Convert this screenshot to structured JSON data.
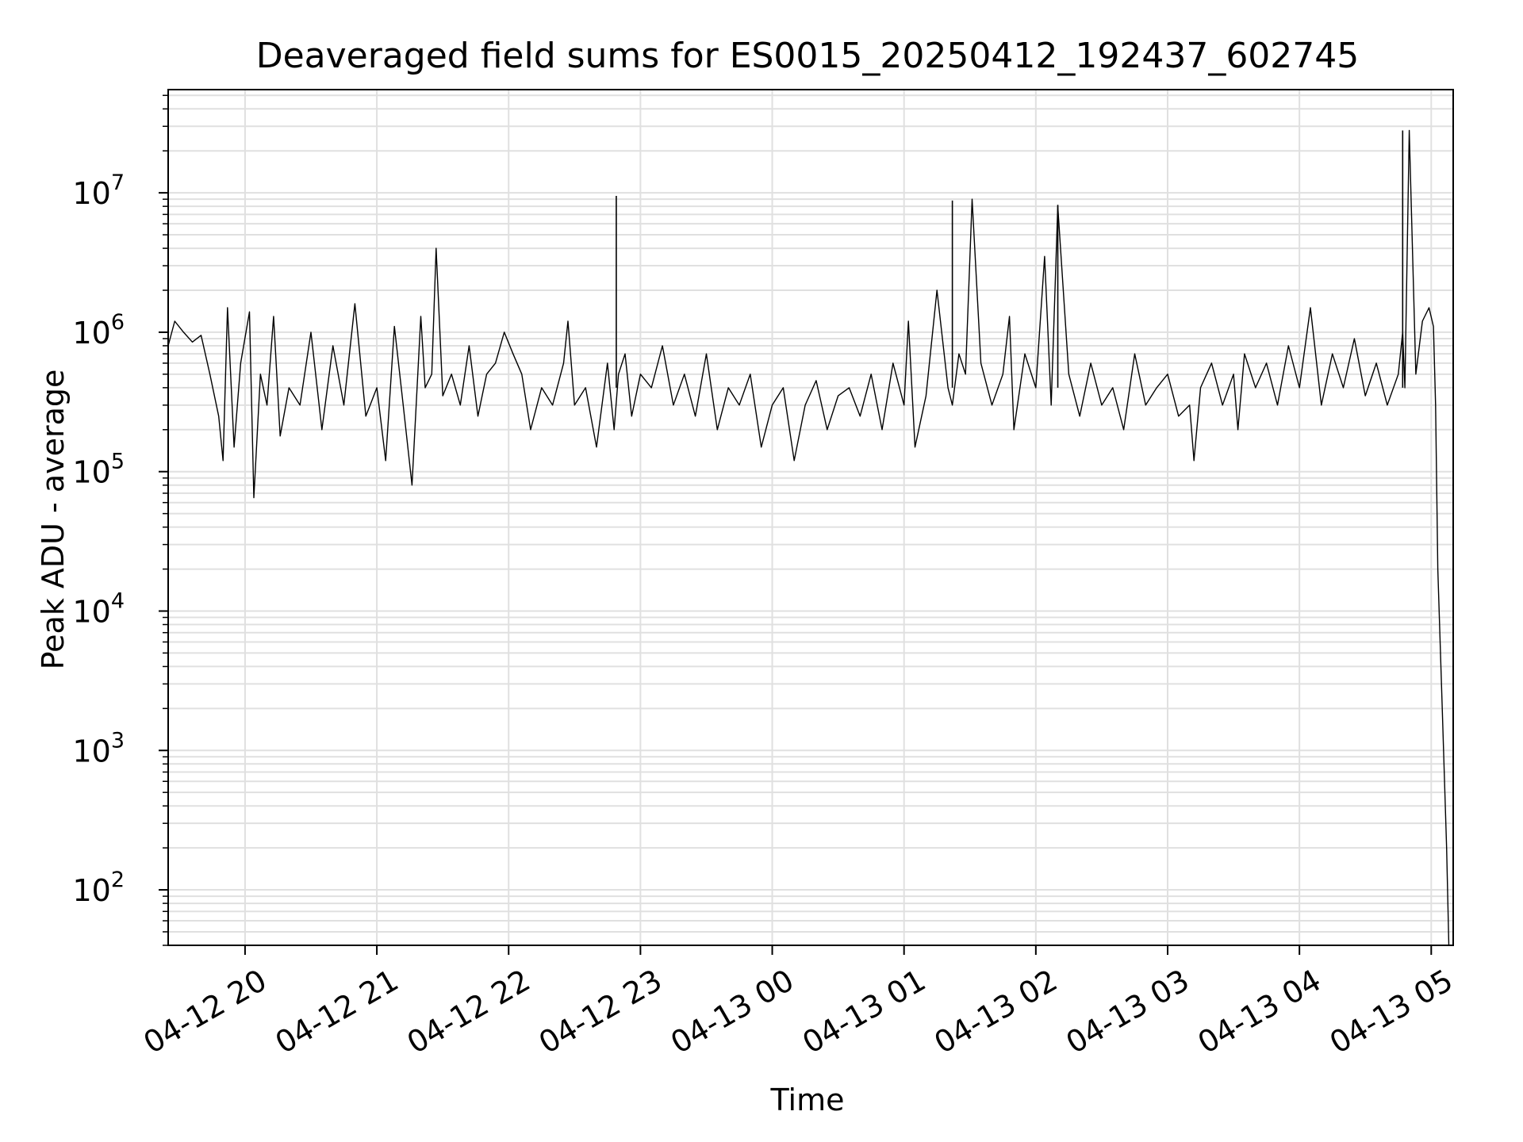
{
  "chart_data": {
    "type": "line",
    "title": "Deaveraged field sums for ES0015_20250412_192437_602745",
    "xlabel": "Time",
    "ylabel": "Peak ADU - average",
    "yscale": "log",
    "xlim": [
      "2025-04-12 19:25",
      "2025-04-13 05:10"
    ],
    "ylim": [
      40,
      55000000
    ],
    "grid": true,
    "line_color": "#000000",
    "grid_color": "#e0e0e0",
    "x_ticks": [
      {
        "t": "2025-04-12 20:00",
        "label": "04-12 20"
      },
      {
        "t": "2025-04-12 21:00",
        "label": "04-12 21"
      },
      {
        "t": "2025-04-12 22:00",
        "label": "04-12 22"
      },
      {
        "t": "2025-04-12 23:00",
        "label": "04-12 23"
      },
      {
        "t": "2025-04-13 00:00",
        "label": "04-13 00"
      },
      {
        "t": "2025-04-13 01:00",
        "label": "04-13 01"
      },
      {
        "t": "2025-04-13 02:00",
        "label": "04-13 02"
      },
      {
        "t": "2025-04-13 03:00",
        "label": "04-13 03"
      },
      {
        "t": "2025-04-13 04:00",
        "label": "04-13 04"
      },
      {
        "t": "2025-04-13 05:00",
        "label": "04-13 05"
      }
    ],
    "y_ticks": [
      {
        "value": 100,
        "base": "10",
        "exp": "2"
      },
      {
        "value": 1000,
        "base": "10",
        "exp": "3"
      },
      {
        "value": 10000,
        "base": "10",
        "exp": "4"
      },
      {
        "value": 100000,
        "base": "10",
        "exp": "5"
      },
      {
        "value": 1000000,
        "base": "10",
        "exp": "6"
      },
      {
        "value": 10000000,
        "base": "10",
        "exp": "7"
      }
    ],
    "series": [
      {
        "x": [
          "2025-04-12 19:25",
          "2025-04-12 19:28",
          "2025-04-12 19:32",
          "2025-04-12 19:36",
          "2025-04-12 19:40",
          "2025-04-12 19:44",
          "2025-04-12 19:48",
          "2025-04-12 19:50",
          "2025-04-12 19:52",
          "2025-04-12 19:55",
          "2025-04-12 19:58",
          "2025-04-12 20:02",
          "2025-04-12 20:04",
          "2025-04-12 20:07",
          "2025-04-12 20:10",
          "2025-04-12 20:13",
          "2025-04-12 20:16",
          "2025-04-12 20:20",
          "2025-04-12 20:25",
          "2025-04-12 20:30",
          "2025-04-12 20:35",
          "2025-04-12 20:40",
          "2025-04-12 20:45",
          "2025-04-12 20:50",
          "2025-04-12 20:55",
          "2025-04-12 21:00",
          "2025-04-12 21:04",
          "2025-04-12 21:08",
          "2025-04-12 21:12",
          "2025-04-12 21:16",
          "2025-04-12 21:20",
          "2025-04-12 21:22",
          "2025-04-12 21:25",
          "2025-04-12 21:27",
          "2025-04-12 21:30",
          "2025-04-12 21:34",
          "2025-04-12 21:38",
          "2025-04-12 21:42",
          "2025-04-12 21:46",
          "2025-04-12 21:50",
          "2025-04-12 21:54",
          "2025-04-12 21:58",
          "2025-04-12 22:02",
          "2025-04-12 22:06",
          "2025-04-12 22:10",
          "2025-04-12 22:15",
          "2025-04-12 22:20",
          "2025-04-12 22:25",
          "2025-04-12 22:27",
          "2025-04-12 22:30",
          "2025-04-12 22:35",
          "2025-04-12 22:40",
          "2025-04-12 22:45",
          "2025-04-12 22:48",
          "2025-04-12 22:50",
          "2025-04-12 22:53",
          "2025-04-12 22:56",
          "2025-04-12 23:00",
          "2025-04-12 23:05",
          "2025-04-12 23:10",
          "2025-04-12 23:15",
          "2025-04-12 23:20",
          "2025-04-12 23:25",
          "2025-04-12 23:30",
          "2025-04-12 23:35",
          "2025-04-12 23:40",
          "2025-04-12 23:45",
          "2025-04-12 23:50",
          "2025-04-12 23:55",
          "2025-04-13 00:00",
          "2025-04-13 00:05",
          "2025-04-13 00:10",
          "2025-04-13 00:15",
          "2025-04-13 00:20",
          "2025-04-13 00:25",
          "2025-04-13 00:30",
          "2025-04-13 00:35",
          "2025-04-13 00:40",
          "2025-04-13 00:45",
          "2025-04-13 00:50",
          "2025-04-13 00:55",
          "2025-04-13 01:00",
          "2025-04-13 01:02",
          "2025-04-13 01:05",
          "2025-04-13 01:10",
          "2025-04-13 01:15",
          "2025-04-13 01:20",
          "2025-04-13 01:22",
          "2025-04-13 01:25",
          "2025-04-13 01:28",
          "2025-04-13 01:31",
          "2025-04-13 01:35",
          "2025-04-13 01:40",
          "2025-04-13 01:45",
          "2025-04-13 01:48",
          "2025-04-13 01:50",
          "2025-04-13 01:55",
          "2025-04-13 02:00",
          "2025-04-13 02:04",
          "2025-04-13 02:07",
          "2025-04-13 02:10",
          "2025-04-13 02:15",
          "2025-04-13 02:20",
          "2025-04-13 02:25",
          "2025-04-13 02:30",
          "2025-04-13 02:35",
          "2025-04-13 02:40",
          "2025-04-13 02:45",
          "2025-04-13 02:50",
          "2025-04-13 02:55",
          "2025-04-13 03:00",
          "2025-04-13 03:05",
          "2025-04-13 03:10",
          "2025-04-13 03:12",
          "2025-04-13 03:15",
          "2025-04-13 03:20",
          "2025-04-13 03:25",
          "2025-04-13 03:30",
          "2025-04-13 03:32",
          "2025-04-13 03:35",
          "2025-04-13 03:40",
          "2025-04-13 03:45",
          "2025-04-13 03:50",
          "2025-04-13 03:55",
          "2025-04-13 04:00",
          "2025-04-13 04:05",
          "2025-04-13 04:10",
          "2025-04-13 04:15",
          "2025-04-13 04:20",
          "2025-04-13 04:25",
          "2025-04-13 04:30",
          "2025-04-13 04:35",
          "2025-04-13 04:40",
          "2025-04-13 04:45",
          "2025-04-13 04:47",
          "2025-04-13 04:48",
          "2025-04-13 04:50",
          "2025-04-13 04:53",
          "2025-04-13 04:56",
          "2025-04-13 04:59",
          "2025-04-13 05:01",
          "2025-04-13 05:02",
          "2025-04-13 05:03",
          "2025-04-13 05:05",
          "2025-04-13 05:07",
          "2025-04-13 05:08"
        ],
        "y": [
          800000,
          1200000,
          1000000,
          850000,
          950000,
          500000,
          250000,
          120000,
          1500000,
          150000,
          600000,
          1400000,
          65000,
          500000,
          300000,
          1300000,
          180000,
          400000,
          300000,
          1000000,
          200000,
          800000,
          300000,
          1600000,
          250000,
          400000,
          120000,
          1100000,
          300000,
          80000,
          1300000,
          400000,
          500000,
          4000000,
          350000,
          500000,
          300000,
          800000,
          250000,
          500000,
          600000,
          1000000,
          700000,
          500000,
          200000,
          400000,
          300000,
          600000,
          1200000,
          300000,
          400000,
          150000,
          600000,
          200000,
          500000,
          700000,
          250000,
          500000,
          400000,
          800000,
          300000,
          500000,
          250000,
          700000,
          200000,
          400000,
          300000,
          500000,
          150000,
          300000,
          400000,
          120000,
          300000,
          450000,
          200000,
          350000,
          400000,
          250000,
          500000,
          200000,
          600000,
          300000,
          1200000,
          150000,
          350000,
          2000000,
          400000,
          300000,
          700000,
          500000,
          9000000,
          600000,
          300000,
          500000,
          1300000,
          200000,
          700000,
          400000,
          3500000,
          300000,
          8000000,
          500000,
          250000,
          600000,
          300000,
          400000,
          200000,
          700000,
          300000,
          400000,
          500000,
          250000,
          300000,
          120000,
          400000,
          600000,
          300000,
          500000,
          200000,
          700000,
          400000,
          600000,
          300000,
          800000,
          400000,
          1500000,
          300000,
          700000,
          400000,
          900000,
          350000,
          600000,
          300000,
          500000,
          1000000,
          400000,
          28000000,
          500000,
          1200000,
          1500000,
          1100000,
          300000,
          20000,
          2000,
          200,
          40
        ]
      }
    ],
    "spikes": [
      {
        "x": "2025-04-12 22:49",
        "y": 9500000
      },
      {
        "x": "2025-04-13 01:22",
        "y": 8800000
      },
      {
        "x": "2025-04-13 02:10",
        "y": 8200000
      },
      {
        "x": "2025-04-13 04:47",
        "y": 28000000
      }
    ]
  }
}
